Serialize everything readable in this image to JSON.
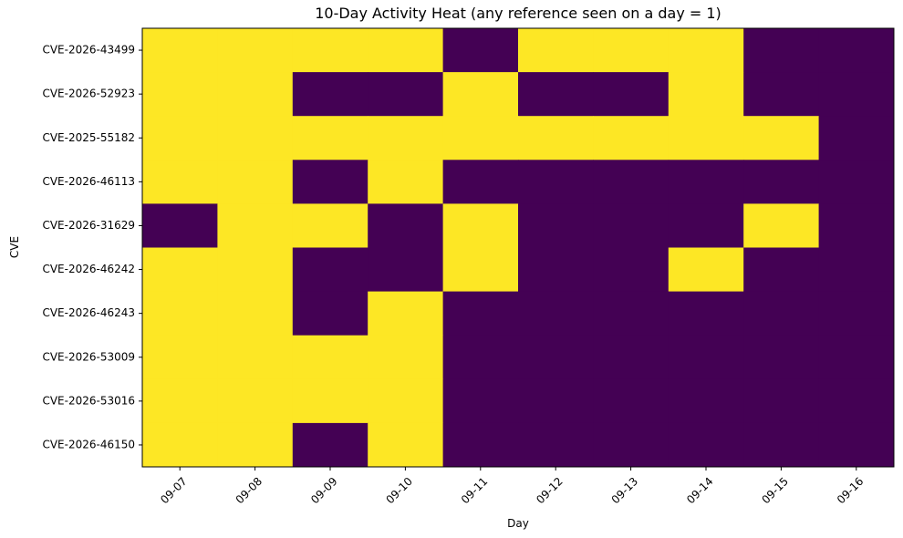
{
  "chart_data": {
    "type": "heatmap",
    "title": "10-Day Activity Heat (any reference seen on a day = 1)",
    "x_label": "Day",
    "y_label": "CVE",
    "x_categories": [
      "09-07",
      "09-08",
      "09-09",
      "09-10",
      "09-11",
      "09-12",
      "09-13",
      "09-14",
      "09-15",
      "09-16"
    ],
    "y_categories": [
      "CVE-2026-43499",
      "CVE-2026-52923",
      "CVE-2025-55182",
      "CVE-2026-46113",
      "CVE-2026-31629",
      "CVE-2026-46242",
      "CVE-2026-46243",
      "CVE-2026-53009",
      "CVE-2026-53016",
      "CVE-2026-46150"
    ],
    "values": [
      [
        1,
        1,
        1,
        1,
        0,
        1,
        1,
        1,
        0,
        0
      ],
      [
        1,
        1,
        0,
        0,
        1,
        0,
        0,
        1,
        0,
        0
      ],
      [
        1,
        1,
        1,
        1,
        1,
        1,
        1,
        1,
        1,
        0
      ],
      [
        1,
        1,
        0,
        1,
        0,
        0,
        0,
        0,
        0,
        0
      ],
      [
        0,
        1,
        1,
        0,
        1,
        0,
        0,
        0,
        1,
        0
      ],
      [
        1,
        1,
        0,
        0,
        1,
        0,
        0,
        1,
        0,
        0
      ],
      [
        1,
        1,
        0,
        1,
        0,
        0,
        0,
        0,
        0,
        0
      ],
      [
        1,
        1,
        1,
        1,
        0,
        0,
        0,
        0,
        0,
        0
      ],
      [
        1,
        1,
        1,
        1,
        0,
        0,
        0,
        0,
        0,
        0
      ],
      [
        1,
        1,
        0,
        1,
        0,
        0,
        0,
        0,
        0,
        0
      ]
    ],
    "clim": [
      0,
      1
    ],
    "color_range": [
      "#440154",
      "#fde725"
    ]
  }
}
